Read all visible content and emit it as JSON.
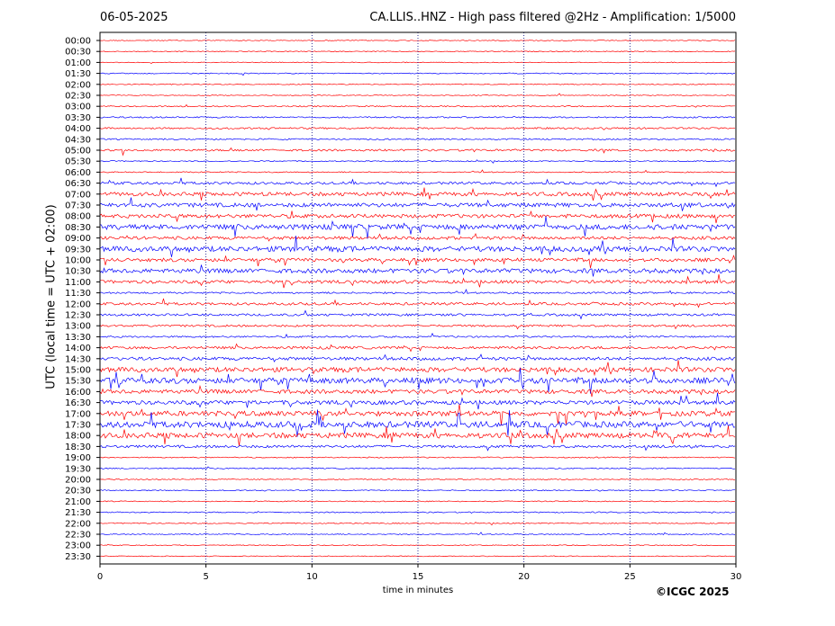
{
  "header": {
    "date": "06-05-2025",
    "title": "CA.LLIS..HNZ - High pass filtered @2Hz - Amplification: 1/5000"
  },
  "footer": {
    "credit": "©ICGC 2025"
  },
  "colors": {
    "red_trace": "#ff0000",
    "blue_trace": "#0000ff",
    "gridline": "#000080"
  },
  "chart_data": {
    "type": "line",
    "title": "CA.LLIS..HNZ - High pass filtered @2Hz - Amplification: 1/5000",
    "xlabel": "time in minutes",
    "ylabel": "UTC (local time = UTC + 02:00)",
    "xlim": [
      0,
      30
    ],
    "x_ticks": [
      0,
      5,
      10,
      15,
      20,
      25,
      30
    ],
    "vertical_grid_minutes": [
      5,
      10,
      15,
      20,
      25
    ],
    "row_labels": [
      "00:00",
      "00:30",
      "01:00",
      "01:30",
      "02:00",
      "02:30",
      "03:00",
      "03:30",
      "04:00",
      "04:30",
      "05:00",
      "05:30",
      "06:00",
      "06:30",
      "07:00",
      "07:30",
      "08:00",
      "08:30",
      "09:00",
      "09:30",
      "10:00",
      "10:30",
      "11:00",
      "11:30",
      "12:00",
      "12:30",
      "13:00",
      "13:30",
      "14:00",
      "14:30",
      "15:00",
      "15:30",
      "16:00",
      "16:30",
      "17:00",
      "17:30",
      "18:00",
      "18:30",
      "19:00",
      "19:30",
      "20:00",
      "20:30",
      "21:00",
      "21:30",
      "22:00",
      "22:30",
      "23:00",
      "23:30"
    ],
    "row_colors": [
      "red",
      "red",
      "red",
      "blue",
      "red",
      "red",
      "red",
      "blue",
      "red",
      "blue",
      "red",
      "blue",
      "red",
      "blue",
      "red",
      "blue",
      "red",
      "blue",
      "red",
      "blue",
      "red",
      "blue",
      "red",
      "blue",
      "red",
      "blue",
      "red",
      "blue",
      "red",
      "blue",
      "red",
      "blue",
      "red",
      "blue",
      "red",
      "blue",
      "red",
      "blue",
      "red",
      "blue",
      "red",
      "blue",
      "red",
      "blue",
      "red",
      "blue",
      "red",
      "red"
    ],
    "row_activity": [
      0.05,
      0.05,
      0.05,
      0.08,
      0.05,
      0.05,
      0.12,
      0.15,
      0.2,
      0.15,
      0.25,
      0.1,
      0.1,
      0.35,
      0.55,
      0.6,
      0.55,
      0.8,
      0.45,
      0.8,
      0.5,
      0.65,
      0.45,
      0.2,
      0.35,
      0.3,
      0.25,
      0.2,
      0.35,
      0.45,
      0.7,
      0.85,
      0.6,
      0.6,
      0.75,
      0.95,
      0.8,
      0.35,
      0.1,
      0.1,
      0.08,
      0.08,
      0.08,
      0.1,
      0.08,
      0.08,
      0.05,
      0.05
    ],
    "grid": true
  }
}
